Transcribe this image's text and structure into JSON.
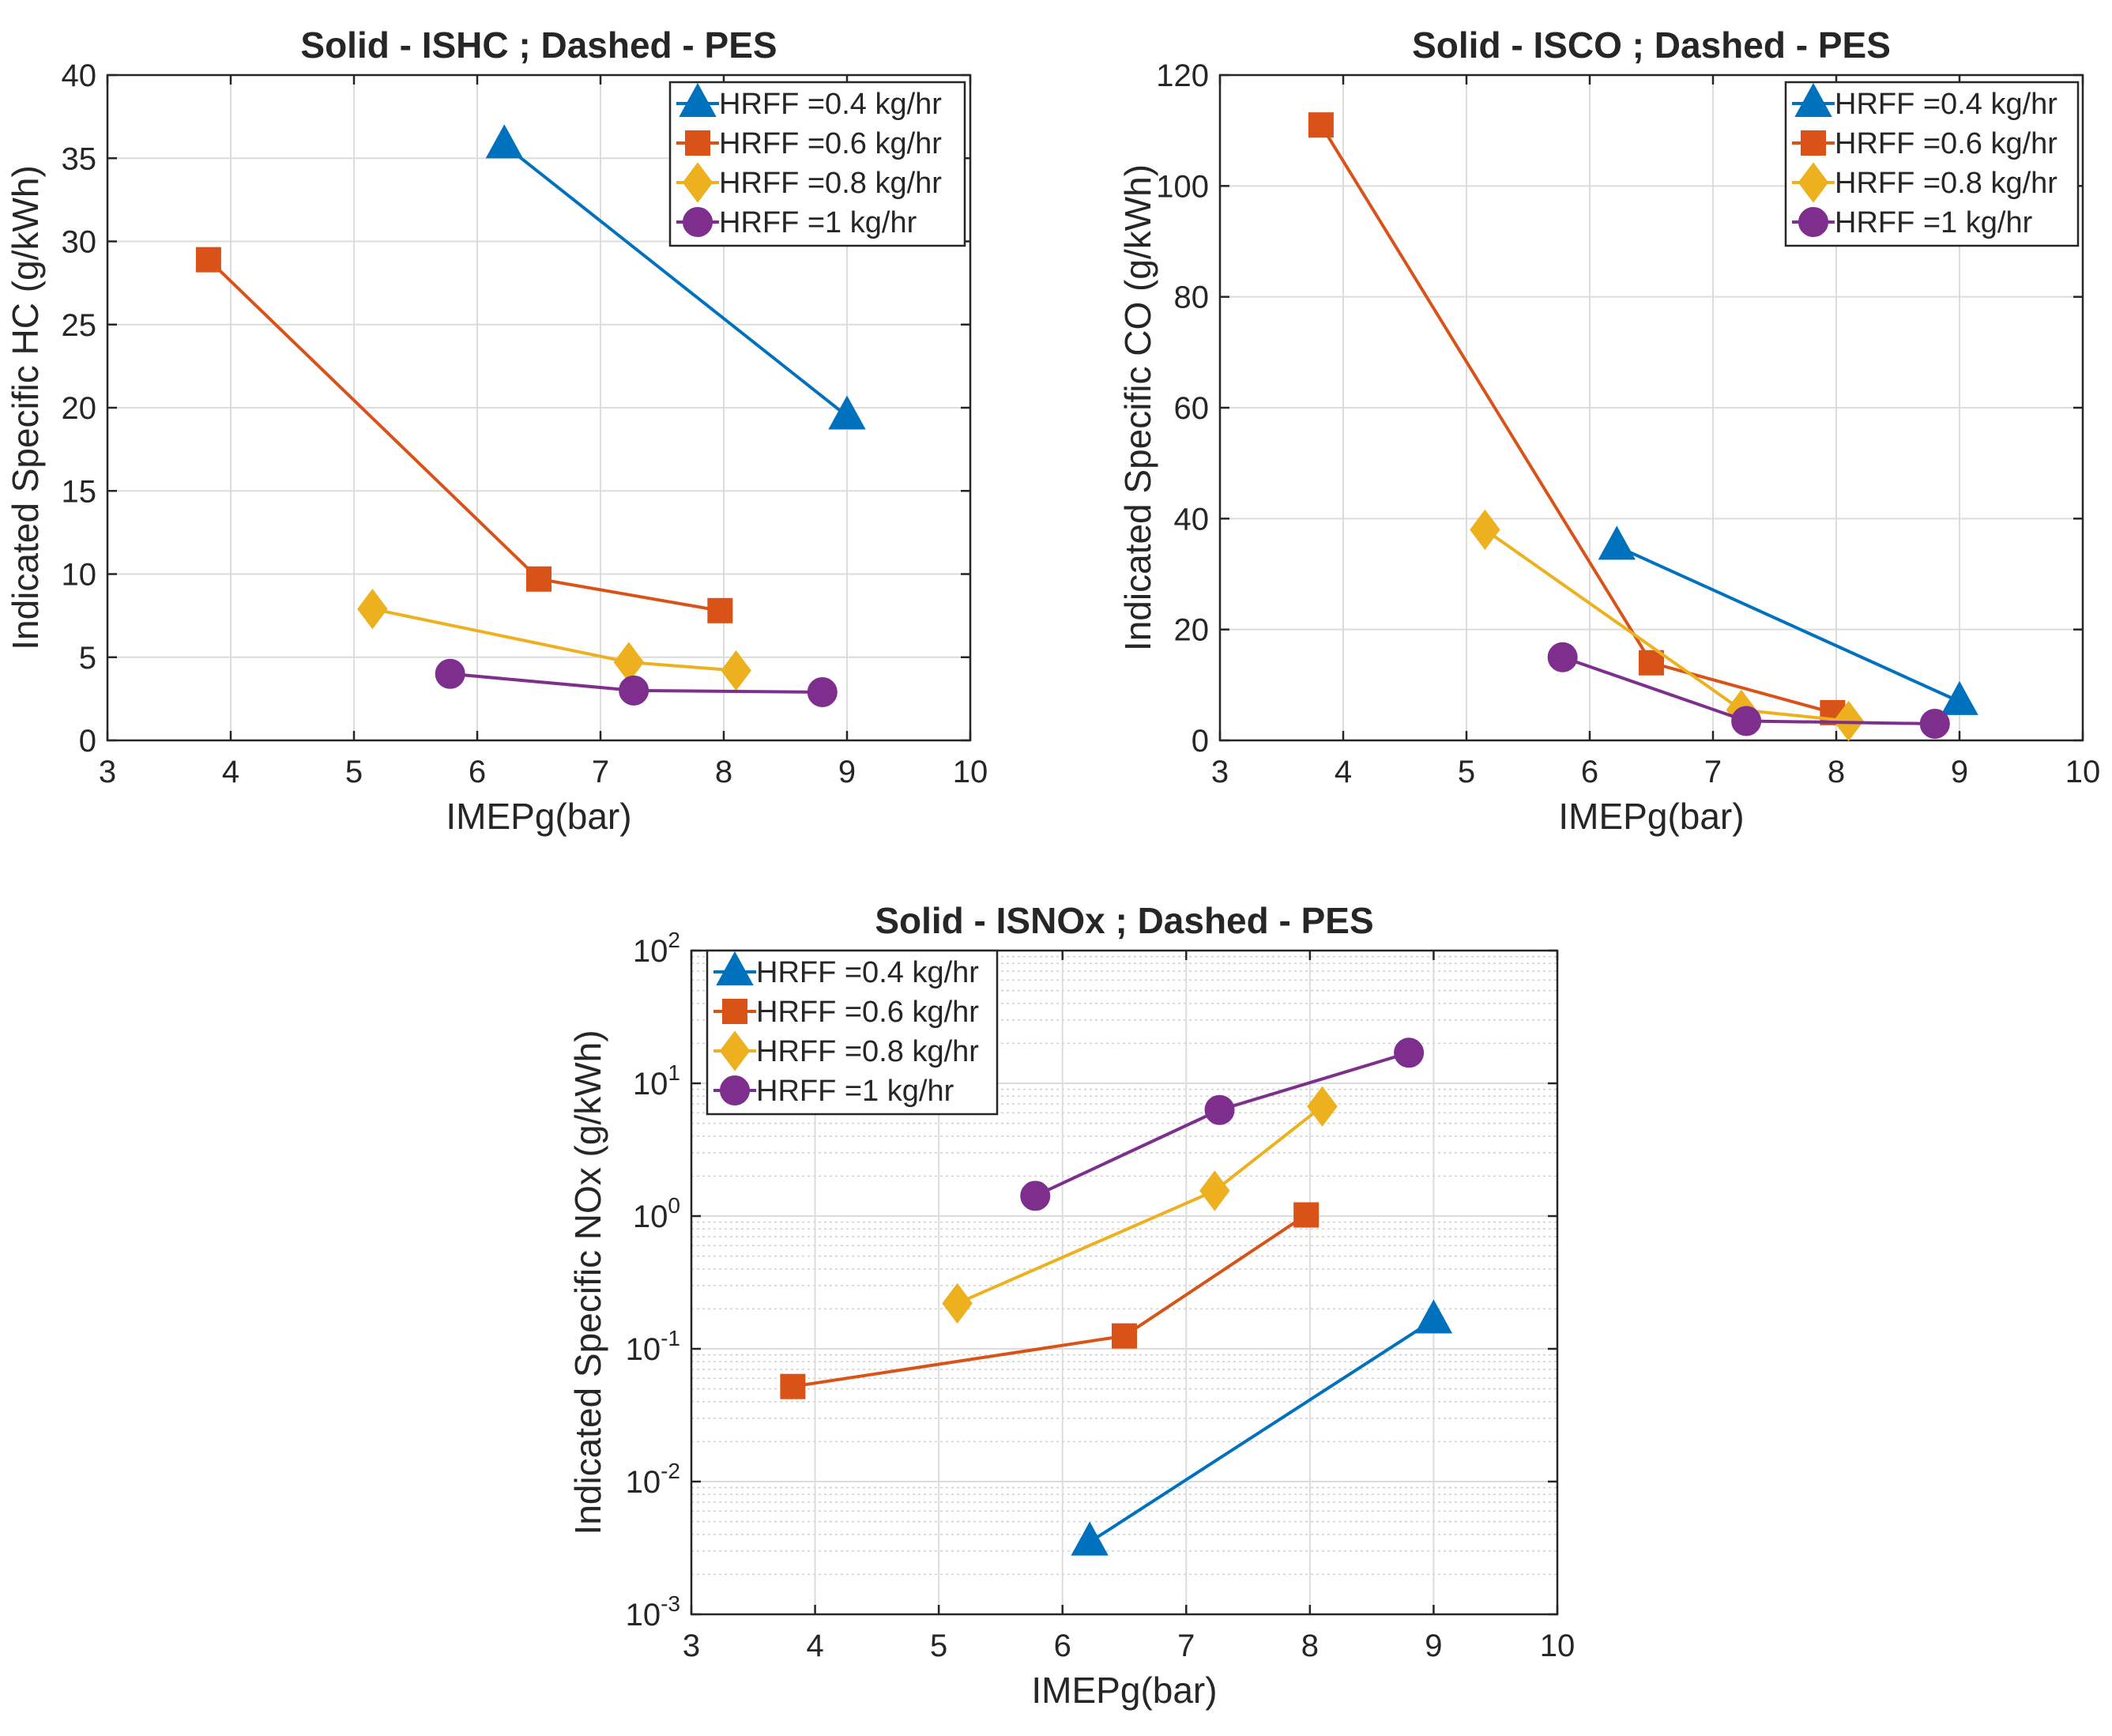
{
  "figure": {
    "series_colors": [
      "#0072BD",
      "#D95319",
      "#EDB120",
      "#7E2F8E"
    ],
    "series_markers": [
      "triangle-icon",
      "square-icon",
      "diamond-icon",
      "circle-icon"
    ]
  },
  "chart_data": [
    {
      "type": "line",
      "title": "Solid - ISHC ; Dashed - PES",
      "xlabel": "IMEPg(bar)",
      "ylabel": "Indicated Specific HC (g/kWh)",
      "xlim": [
        3,
        10
      ],
      "ylim": [
        0,
        40
      ],
      "yscale": "linear",
      "xticks": [
        "3",
        "4",
        "5",
        "6",
        "7",
        "8",
        "9",
        "10"
      ],
      "yticks": [
        "0",
        "5",
        "10",
        "15",
        "20",
        "25",
        "30",
        "35",
        "40"
      ],
      "grid": true,
      "legend_position": "top-right",
      "series": [
        {
          "name": "HRFF =0.4 kg/hr",
          "x": [
            6.22,
            9.0
          ],
          "y": [
            35.8,
            19.5
          ]
        },
        {
          "name": "HRFF =0.6 kg/hr",
          "x": [
            3.82,
            6.5,
            7.97
          ],
          "y": [
            28.9,
            9.7,
            7.8
          ]
        },
        {
          "name": "HRFF =0.8 kg/hr",
          "x": [
            5.15,
            7.23,
            8.1
          ],
          "y": [
            7.9,
            4.7,
            4.2
          ]
        },
        {
          "name": "HRFF =1 kg/hr",
          "x": [
            5.78,
            7.27,
            8.8
          ],
          "y": [
            4.0,
            3.0,
            2.9
          ]
        }
      ]
    },
    {
      "type": "line",
      "title": "Solid - ISCO ; Dashed - PES",
      "xlabel": "IMEPg(bar)",
      "ylabel": "Indicated Specific CO (g/kWh)",
      "xlim": [
        3,
        10
      ],
      "ylim": [
        0,
        120
      ],
      "yscale": "linear",
      "xticks": [
        "3",
        "4",
        "5",
        "6",
        "7",
        "8",
        "9",
        "10"
      ],
      "yticks": [
        "0",
        "20",
        "40",
        "60",
        "80",
        "100",
        "120"
      ],
      "grid": true,
      "legend_position": "top-right",
      "series": [
        {
          "name": "HRFF =0.4 kg/hr",
          "x": [
            6.22,
            9.0
          ],
          "y": [
            35.0,
            7.0
          ]
        },
        {
          "name": "HRFF =0.6 kg/hr",
          "x": [
            3.82,
            6.5,
            7.97
          ],
          "y": [
            111.0,
            14.0,
            5.0
          ]
        },
        {
          "name": "HRFF =0.8 kg/hr",
          "x": [
            5.15,
            7.23,
            8.1
          ],
          "y": [
            38.0,
            5.5,
            3.5
          ]
        },
        {
          "name": "HRFF =1 kg/hr",
          "x": [
            5.78,
            7.27,
            8.8
          ],
          "y": [
            15.0,
            3.5,
            3.0
          ]
        }
      ]
    },
    {
      "type": "line",
      "title": "Solid - ISNOx ; Dashed - PES",
      "xlabel": "IMEPg(bar)",
      "ylabel": "Indicated Specific NOx (g/kWh)",
      "xlim": [
        3,
        10
      ],
      "ylim": [
        0.001,
        100
      ],
      "yscale": "log",
      "xticks": [
        "3",
        "4",
        "5",
        "6",
        "7",
        "8",
        "9",
        "10"
      ],
      "yticks_base": "10",
      "yticks_exponents": [
        "-3",
        "-2",
        "-1",
        "0",
        "1",
        "2"
      ],
      "grid": true,
      "minor_grid": true,
      "legend_position": "top-left",
      "series": [
        {
          "name": "HRFF =0.4 kg/hr",
          "x": [
            6.22,
            9.0
          ],
          "y": [
            0.0035,
            0.165
          ]
        },
        {
          "name": "HRFF =0.6 kg/hr",
          "x": [
            3.82,
            6.5,
            7.97
          ],
          "y": [
            0.052,
            0.125,
            1.02
          ]
        },
        {
          "name": "HRFF =0.8 kg/hr",
          "x": [
            5.15,
            7.23,
            8.1
          ],
          "y": [
            0.22,
            1.55,
            6.7
          ]
        },
        {
          "name": "HRFF =1 kg/hr",
          "x": [
            5.78,
            7.27,
            8.8
          ],
          "y": [
            1.42,
            6.3,
            17.0
          ]
        }
      ]
    }
  ]
}
